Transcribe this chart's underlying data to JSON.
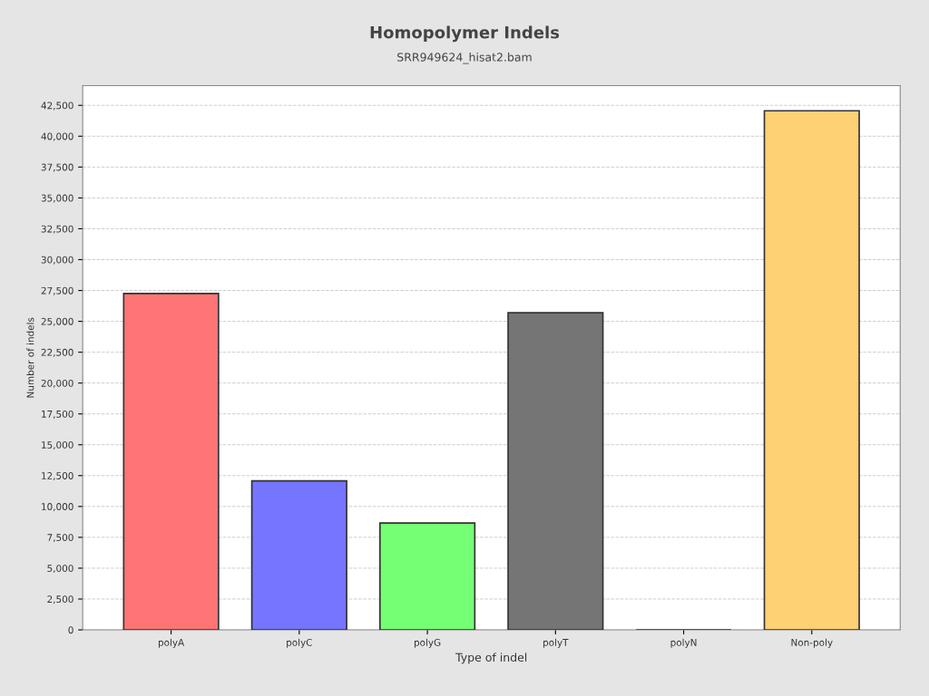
{
  "chart_data": {
    "type": "bar",
    "title": "Homopolymer Indels",
    "subtitle": "SRR949624_hisat2.bam",
    "xlabel": "Type of indel",
    "ylabel": "Number of indels",
    "categories": [
      "polyA",
      "polyC",
      "polyG",
      "polyT",
      "polyN",
      "Non-poly"
    ],
    "values": [
      27250,
      12070,
      8660,
      25700,
      0,
      42060
    ],
    "colors": [
      "#ff7575",
      "#7575ff",
      "#75ff75",
      "#757575",
      "#333333",
      "#ffd175"
    ],
    "ylim": [
      0,
      44100
    ],
    "yticks": [
      0,
      {
        "value": 2500,
        "label": "2,500"
      },
      {
        "value": 5000,
        "label": "5,000"
      },
      {
        "value": 7500,
        "label": "7,500"
      },
      {
        "value": 10000,
        "label": "10,000"
      },
      {
        "value": 12500,
        "label": "12,500"
      },
      {
        "value": 15000,
        "label": "15,000"
      },
      {
        "value": 17500,
        "label": "17,500"
      },
      {
        "value": 20000,
        "label": "20,000"
      },
      {
        "value": 22500,
        "label": "22,500"
      },
      {
        "value": 25000,
        "label": "25,000"
      },
      {
        "value": 27500,
        "label": "27,500"
      },
      {
        "value": 30000,
        "label": "30,000"
      },
      {
        "value": 32500,
        "label": "32,500"
      },
      {
        "value": 35000,
        "label": "35,000"
      },
      {
        "value": 37500,
        "label": "37,500"
      },
      {
        "value": 40000,
        "label": "40,000"
      },
      {
        "value": 42500,
        "label": "42,500"
      }
    ],
    "grid": "y"
  }
}
